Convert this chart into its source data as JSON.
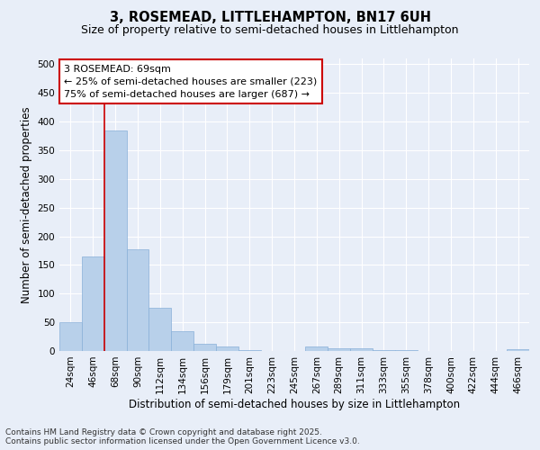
{
  "title1": "3, ROSEMEAD, LITTLEHAMPTON, BN17 6UH",
  "title2": "Size of property relative to semi-detached houses in Littlehampton",
  "xlabel": "Distribution of semi-detached houses by size in Littlehampton",
  "ylabel": "Number of semi-detached properties",
  "categories": [
    "24sqm",
    "46sqm",
    "68sqm",
    "90sqm",
    "112sqm",
    "134sqm",
    "156sqm",
    "179sqm",
    "201sqm",
    "223sqm",
    "245sqm",
    "267sqm",
    "289sqm",
    "311sqm",
    "333sqm",
    "355sqm",
    "378sqm",
    "400sqm",
    "422sqm",
    "444sqm",
    "466sqm"
  ],
  "values": [
    51,
    165,
    385,
    178,
    75,
    34,
    13,
    8,
    1,
    0,
    0,
    8,
    5,
    4,
    2,
    2,
    0,
    0,
    0,
    0,
    3
  ],
  "bar_color": "#b8d0ea",
  "bar_edge_color": "#88b0d8",
  "vline_color": "#cc0000",
  "vline_x_index": 2,
  "annotation_title": "3 ROSEMEAD: 69sqm",
  "annotation_line1": "← 25% of semi-detached houses are smaller (223)",
  "annotation_line2": "75% of semi-detached houses are larger (687) →",
  "annotation_box_facecolor": "#ffffff",
  "annotation_box_edgecolor": "#cc0000",
  "footer1": "Contains HM Land Registry data © Crown copyright and database right 2025.",
  "footer2": "Contains public sector information licensed under the Open Government Licence v3.0.",
  "ylim": [
    0,
    510
  ],
  "yticks": [
    0,
    50,
    100,
    150,
    200,
    250,
    300,
    350,
    400,
    450,
    500
  ],
  "background_color": "#e8eef8",
  "grid_color": "#ffffff",
  "title1_fontsize": 10.5,
  "title2_fontsize": 9,
  "axis_label_fontsize": 8.5,
  "tick_fontsize": 7.5,
  "annotation_fontsize": 8,
  "footer_fontsize": 6.5
}
